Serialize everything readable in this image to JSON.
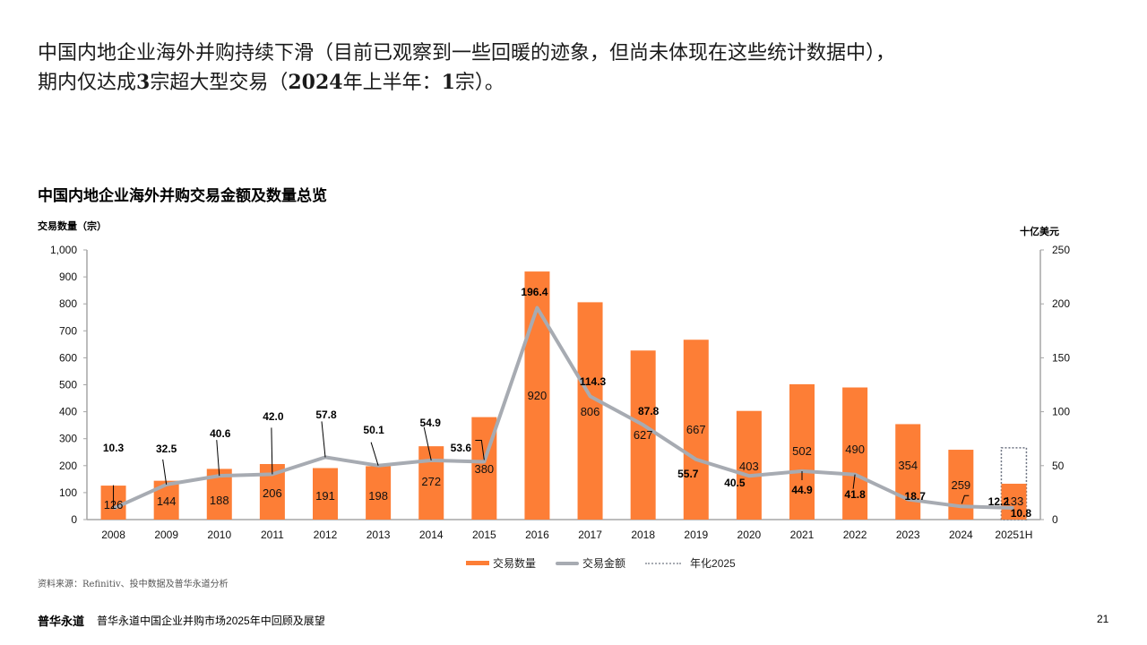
{
  "headline": {
    "line1": "中国内地企业海外并购持续下滑（目前已观察到一些回暖的迹象，但尚未体现在这些统计数据中），",
    "line2_a": "期内仅达成",
    "line2_b": "3",
    "line2_c": "宗超大型交易（",
    "line2_d": "2024",
    "line2_e": "年上半年：",
    "line2_f": "1",
    "line2_g": "宗）。"
  },
  "source": "资料来源：Refinitiv、投中数据及普华永道分析",
  "footer": {
    "brand": "普华永道",
    "title": "普华永道中国企业并购市场2025年中回顾及展望",
    "page": "21"
  },
  "colors": {
    "bar": "#fd7e36",
    "line": "#a7abb2",
    "axis": "#a6a6a6",
    "dotted": "#6b7280"
  },
  "chart_data": {
    "type": "bar",
    "title": "中国内地企业海外并购交易金额及数量总览",
    "ylabel": "交易数量（宗）",
    "y2label": "十亿美元",
    "ylim": [
      0,
      1000
    ],
    "y2lim": [
      0,
      250
    ],
    "yticks": [
      "0",
      "100",
      "200",
      "300",
      "400",
      "500",
      "600",
      "700",
      "800",
      "900",
      "1,000"
    ],
    "y2ticks": [
      "0",
      "50",
      "100",
      "150",
      "200",
      "250"
    ],
    "categories": [
      "2008",
      "2009",
      "2010",
      "2011",
      "2012",
      "2013",
      "2014",
      "2015",
      "2016",
      "2017",
      "2018",
      "2019",
      "2020",
      "2021",
      "2022",
      "2023",
      "2024",
      "20251H"
    ],
    "series": [
      {
        "name": "交易数量",
        "type": "bar",
        "axis": "left",
        "values": [
          126,
          144,
          188,
          206,
          191,
          198,
          272,
          380,
          920,
          806,
          627,
          667,
          403,
          502,
          490,
          354,
          259,
          133
        ],
        "labels": [
          "126",
          "144",
          "188",
          "206",
          "191",
          "198",
          "272",
          "380",
          "920",
          "806",
          "627",
          "667",
          "403",
          "502",
          "490",
          "354",
          "259",
          "133"
        ]
      },
      {
        "name": "交易金额",
        "type": "line",
        "axis": "right",
        "values": [
          10.3,
          32.5,
          40.6,
          42.0,
          57.8,
          50.1,
          54.9,
          53.6,
          196.4,
          114.3,
          87.8,
          55.7,
          40.5,
          44.9,
          41.8,
          18.7,
          12.2,
          10.8
        ],
        "labels": [
          "10.3",
          "32.5",
          "40.6",
          "42.0",
          "57.8",
          "50.1",
          "54.9",
          "53.6",
          "196.4",
          "114.3",
          "87.8",
          "55.7",
          "40.5",
          "44.9",
          "41.8",
          "18.7",
          "12.2",
          "10.8"
        ]
      },
      {
        "name": "年化2025",
        "type": "dotted-bar",
        "axis": "left",
        "category": "20251H",
        "value": 266
      }
    ],
    "legend": [
      "交易数量",
      "交易金额",
      "年化2025"
    ],
    "legend_position": "bottom-center"
  }
}
